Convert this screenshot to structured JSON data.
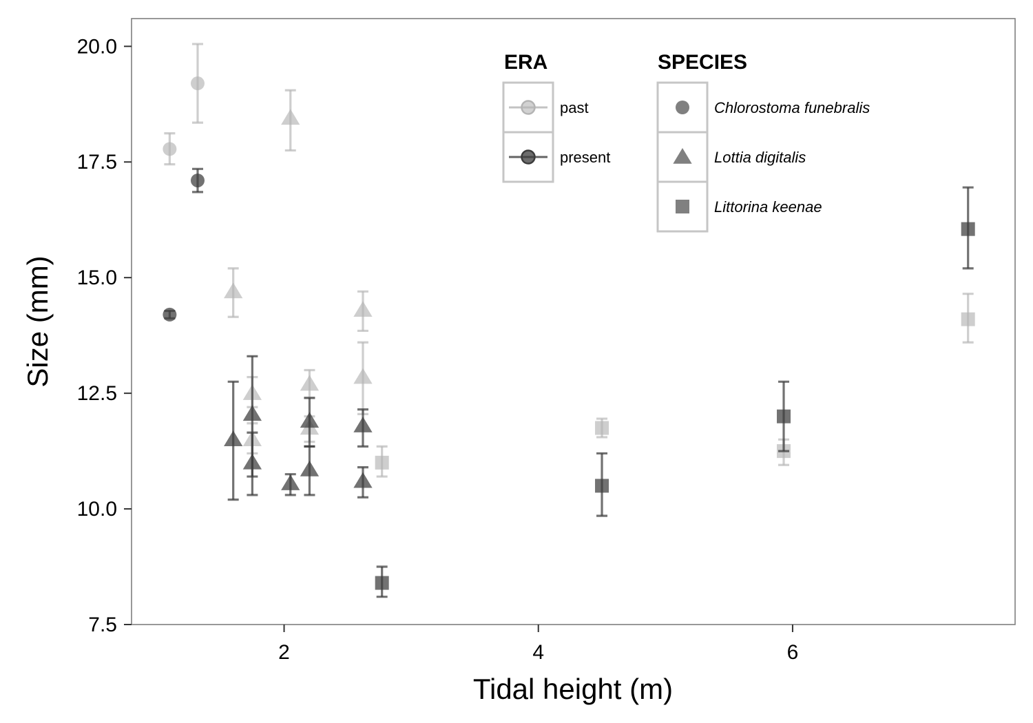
{
  "colors": {
    "past": "#b4b4b4",
    "present": "#3c3c3c",
    "legend_shape": "#808080",
    "frame": "#7f7f7f",
    "legend_frame": "#c6c6c6"
  },
  "chart_data": {
    "type": "scatter",
    "xlabel": "Tidal height (m)",
    "ylabel": "Size (mm)",
    "xlim": [
      0.8,
      7.75
    ],
    "ylim": [
      7.5,
      20.6
    ],
    "x_ticks": [
      "2",
      "4",
      "6"
    ],
    "y_ticks": [
      "7.5",
      "10.0",
      "12.5",
      "15.0",
      "17.5",
      "20.0"
    ],
    "grid": false,
    "legend_placement": "top-right inside plot",
    "legends": [
      {
        "title": "ERA",
        "entries": [
          {
            "label": "past",
            "italic": false
          },
          {
            "label": "present",
            "italic": false
          }
        ]
      },
      {
        "title": "SPECIES",
        "entries": [
          {
            "label": "Chlorostoma funebralis",
            "italic": true,
            "shape": "circle"
          },
          {
            "label": "Lottia digitalis",
            "italic": true,
            "shape": "triangle"
          },
          {
            "label": "Littorina keenae",
            "italic": true,
            "shape": "square"
          }
        ]
      }
    ],
    "points": [
      {
        "era": "past",
        "species": "Chlorostoma funebralis",
        "x": 1.1,
        "y": 17.78,
        "lo": 17.45,
        "hi": 18.12
      },
      {
        "era": "past",
        "species": "Chlorostoma funebralis",
        "x": 1.32,
        "y": 19.2,
        "lo": 18.35,
        "hi": 20.05
      },
      {
        "era": "present",
        "species": "Chlorostoma funebralis",
        "x": 1.32,
        "y": 17.1,
        "lo": 16.85,
        "hi": 17.35
      },
      {
        "era": "present",
        "species": "Chlorostoma funebralis",
        "x": 1.1,
        "y": 14.2,
        "lo": 14.12,
        "hi": 14.28
      },
      {
        "era": "past",
        "species": "Lottia digitalis",
        "x": 2.05,
        "y": 18.45,
        "lo": 17.75,
        "hi": 19.05
      },
      {
        "era": "past",
        "species": "Lottia digitalis",
        "x": 1.6,
        "y": 14.7,
        "lo": 14.15,
        "hi": 15.2
      },
      {
        "era": "past",
        "species": "Lottia digitalis",
        "x": 1.75,
        "y": 12.5,
        "lo": 12.2,
        "hi": 12.85
      },
      {
        "era": "past",
        "species": "Lottia digitalis",
        "x": 1.75,
        "y": 11.5,
        "lo": 11.2,
        "hi": 11.85
      },
      {
        "era": "past",
        "species": "Lottia digitalis",
        "x": 2.2,
        "y": 12.7,
        "lo": 12.4,
        "hi": 13.0
      },
      {
        "era": "past",
        "species": "Lottia digitalis",
        "x": 2.2,
        "y": 11.75,
        "lo": 11.45,
        "hi": 12.0
      },
      {
        "era": "past",
        "species": "Lottia digitalis",
        "x": 2.62,
        "y": 14.3,
        "lo": 13.85,
        "hi": 14.7
      },
      {
        "era": "past",
        "species": "Lottia digitalis",
        "x": 2.62,
        "y": 12.85,
        "lo": 12.05,
        "hi": 13.6
      },
      {
        "era": "present",
        "species": "Lottia digitalis",
        "x": 1.6,
        "y": 11.5,
        "lo": 10.2,
        "hi": 12.75
      },
      {
        "era": "present",
        "species": "Lottia digitalis",
        "x": 1.75,
        "y": 12.05,
        "lo": 10.7,
        "hi": 13.3
      },
      {
        "era": "present",
        "species": "Lottia digitalis",
        "x": 1.75,
        "y": 11.0,
        "lo": 10.3,
        "hi": 11.65
      },
      {
        "era": "present",
        "species": "Lottia digitalis",
        "x": 2.05,
        "y": 10.55,
        "lo": 10.3,
        "hi": 10.75
      },
      {
        "era": "present",
        "species": "Lottia digitalis",
        "x": 2.2,
        "y": 11.9,
        "lo": 11.35,
        "hi": 12.4
      },
      {
        "era": "present",
        "species": "Lottia digitalis",
        "x": 2.2,
        "y": 10.85,
        "lo": 10.3,
        "hi": 11.35
      },
      {
        "era": "present",
        "species": "Lottia digitalis",
        "x": 2.62,
        "y": 11.8,
        "lo": 11.35,
        "hi": 12.15
      },
      {
        "era": "present",
        "species": "Lottia digitalis",
        "x": 2.62,
        "y": 10.6,
        "lo": 10.25,
        "hi": 10.9
      },
      {
        "era": "past",
        "species": "Littorina keenae",
        "x": 2.77,
        "y": 11.0,
        "lo": 10.7,
        "hi": 11.35
      },
      {
        "era": "past",
        "species": "Littorina keenae",
        "x": 4.5,
        "y": 11.75,
        "lo": 11.55,
        "hi": 11.95
      },
      {
        "era": "past",
        "species": "Littorina keenae",
        "x": 5.93,
        "y": 11.25,
        "lo": 10.95,
        "hi": 11.5
      },
      {
        "era": "past",
        "species": "Littorina keenae",
        "x": 7.38,
        "y": 14.1,
        "lo": 13.6,
        "hi": 14.65
      },
      {
        "era": "present",
        "species": "Littorina keenae",
        "x": 2.77,
        "y": 8.4,
        "lo": 8.1,
        "hi": 8.75
      },
      {
        "era": "present",
        "species": "Littorina keenae",
        "x": 4.5,
        "y": 10.5,
        "lo": 9.85,
        "hi": 11.2
      },
      {
        "era": "present",
        "species": "Littorina keenae",
        "x": 5.93,
        "y": 12.0,
        "lo": 11.25,
        "hi": 12.75
      },
      {
        "era": "present",
        "species": "Littorina keenae",
        "x": 7.38,
        "y": 16.05,
        "lo": 15.2,
        "hi": 16.95
      }
    ]
  }
}
